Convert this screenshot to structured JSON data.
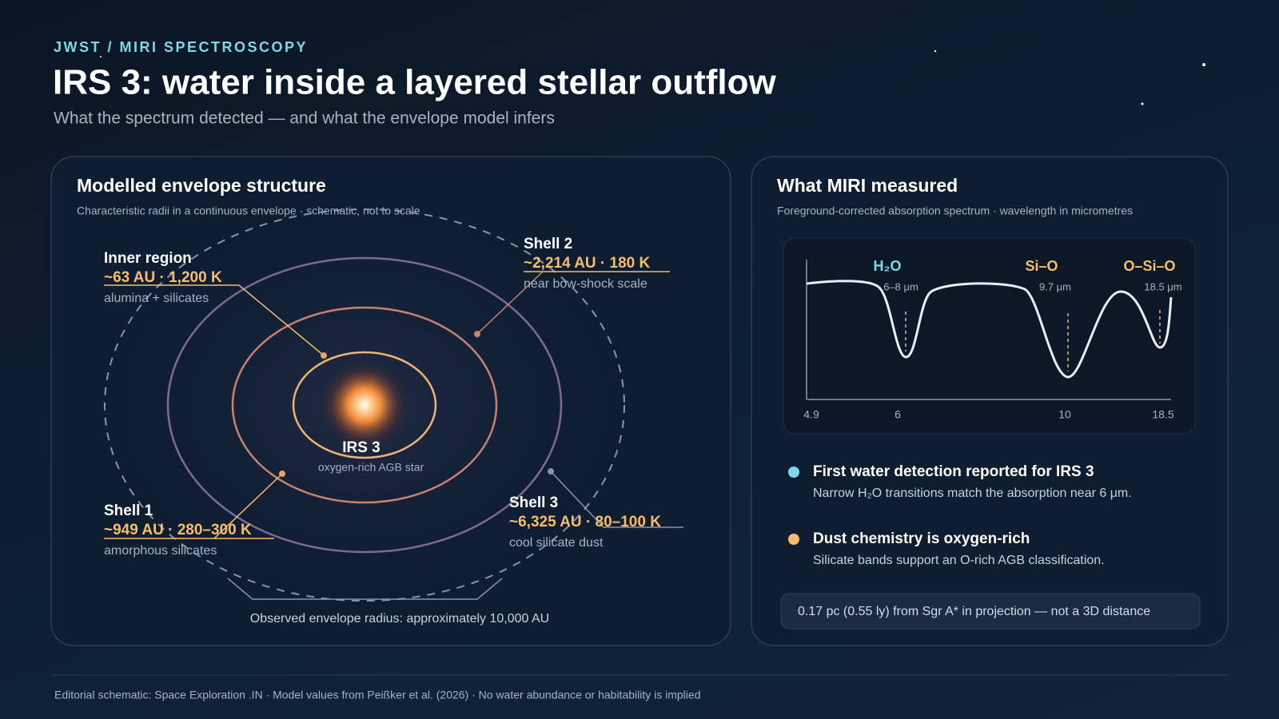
{
  "header": {
    "kicker": "JWST / MIRI SPECTROSCOPY",
    "title": "IRS 3: water inside a layered stellar outflow",
    "subtitle": "What the spectrum detected — and what the envelope model infers"
  },
  "envelope_panel": {
    "title": "Modelled envelope structure",
    "subtitle": "Characteristic radii in a continuous envelope · schematic, not to scale",
    "star": {
      "name": "IRS 3",
      "description": "oxygen-rich AGB star"
    },
    "regions": [
      {
        "name": "Inner region",
        "values": "~63 AU · 1,200 K",
        "material": "alumina + silicates"
      },
      {
        "name": "Shell 2",
        "values": "~2,214 AU · 180 K",
        "material": "near bow-shock scale"
      },
      {
        "name": "Shell 1",
        "values": "~949 AU · 280–300 K",
        "material": "amorphous silicates"
      },
      {
        "name": "Shell 3",
        "values": "~6,325 AU · 80–100 K",
        "material": "cool silicate dust"
      }
    ],
    "footnote": "Observed envelope radius: approximately 10,000 AU"
  },
  "spectrum_panel": {
    "title": "What MIRI measured",
    "subtitle": "Foreground-corrected absorption spectrum · wavelength in micrometres",
    "features": [
      {
        "label": "H₂O",
        "range": "6–8 μm"
      },
      {
        "label": "Si–O",
        "range": "9.7 μm"
      },
      {
        "label": "O–Si–O",
        "range": "18.5 μm"
      }
    ],
    "x_tick_labels": [
      "4.9",
      "6",
      "10",
      "18.5"
    ],
    "findings": [
      {
        "title": "First water detection reported for IRS 3",
        "text": "Narrow H₂O transitions match the absorption near 6 μm."
      },
      {
        "title": "Dust chemistry is oxygen-rich",
        "text": "Silicate bands support an O-rich AGB classification."
      }
    ],
    "note": "0.17 pc (0.55 ly) from Sgr A* in projection — not a 3D distance"
  },
  "footer": "Editorial schematic: Space Exploration .IN · Model values from Peißker et al. (2026) · No water abundance or habitability is implied"
}
